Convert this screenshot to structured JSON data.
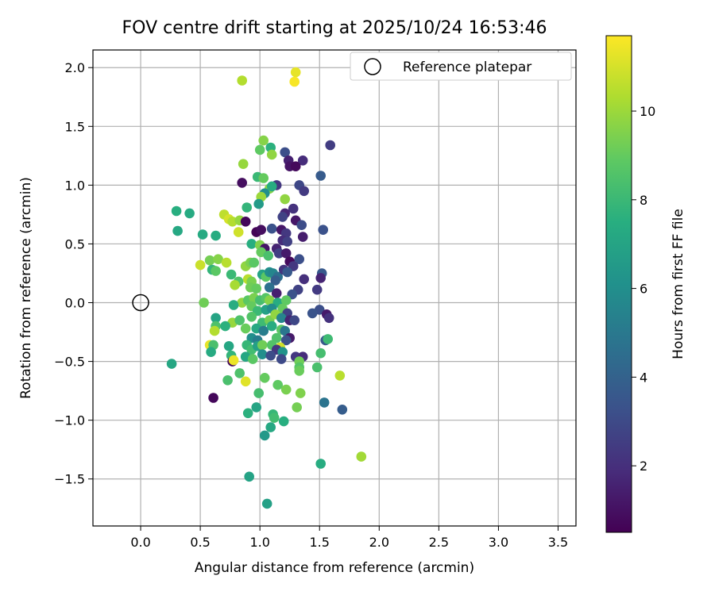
{
  "chart_data": {
    "type": "scatter",
    "title": "FOV centre drift starting at 2025/10/24 16:53:46",
    "xlabel": "Angular distance from reference (arcmin)",
    "ylabel": "Rotation from reference (arcmin)",
    "xlim": [
      -0.4,
      3.65
    ],
    "ylim": [
      -1.9,
      2.15
    ],
    "xticks": [
      "0.0",
      "0.5",
      "1.0",
      "1.5",
      "2.0",
      "2.5",
      "3.0",
      "3.5"
    ],
    "yticks": [
      "−1.5",
      "−1.0",
      "−0.5",
      "0.0",
      "0.5",
      "1.0",
      "1.5",
      "2.0"
    ],
    "grid": true,
    "legend": {
      "placement": "top-right",
      "entries": [
        "Reference platepar"
      ]
    },
    "reference": {
      "x": 0.0,
      "y": 0.0,
      "label": "Reference platepar"
    },
    "colorbar": {
      "label": "Hours from first FF file",
      "colormap": "viridis",
      "range": [
        0.5,
        11.7
      ],
      "ticks": [
        "2",
        "4",
        "6",
        "8",
        "10"
      ]
    },
    "points": [
      [
        0.85,
        1.89,
        10.4
      ],
      [
        1.3,
        1.96,
        11.3
      ],
      [
        1.29,
        1.88,
        11.6
      ],
      [
        1.59,
        1.34,
        2.5
      ],
      [
        1.03,
        1.38,
        9.6
      ],
      [
        1.0,
        1.3,
        8.9
      ],
      [
        1.09,
        1.32,
        7.6
      ],
      [
        1.1,
        1.26,
        9.8
      ],
      [
        1.21,
        1.28,
        3.2
      ],
      [
        1.24,
        1.21,
        1.5
      ],
      [
        1.36,
        1.21,
        1.9
      ],
      [
        1.25,
        1.16,
        1.1
      ],
      [
        1.3,
        1.16,
        0.8
      ],
      [
        0.86,
        1.18,
        9.9
      ],
      [
        1.51,
        1.08,
        3.7
      ],
      [
        0.98,
        1.07,
        8.0
      ],
      [
        1.03,
        1.06,
        9.0
      ],
      [
        0.85,
        1.02,
        0.9
      ],
      [
        1.08,
        0.97,
        9.6
      ],
      [
        1.14,
        1.0,
        2.3
      ],
      [
        1.33,
        1.0,
        2.9
      ],
      [
        1.37,
        0.95,
        2.4
      ],
      [
        1.1,
        0.99,
        7.4
      ],
      [
        1.04,
        0.93,
        6.0
      ],
      [
        1.01,
        0.9,
        10.0
      ],
      [
        1.21,
        0.88,
        9.8
      ],
      [
        0.99,
        0.84,
        6.6
      ],
      [
        1.28,
        0.8,
        2.1
      ],
      [
        0.89,
        0.81,
        7.8
      ],
      [
        0.3,
        0.78,
        7.5
      ],
      [
        0.41,
        0.76,
        7.3
      ],
      [
        0.7,
        0.75,
        10.6
      ],
      [
        0.74,
        0.71,
        11.0
      ],
      [
        0.77,
        0.69,
        10.4
      ],
      [
        0.83,
        0.7,
        9.9
      ],
      [
        1.21,
        0.76,
        1.7
      ],
      [
        1.19,
        0.73,
        2.7
      ],
      [
        0.88,
        0.69,
        0.7
      ],
      [
        1.3,
        0.7,
        1.2
      ],
      [
        1.35,
        0.66,
        3.1
      ],
      [
        1.1,
        0.63,
        3.3
      ],
      [
        1.18,
        0.62,
        1.2
      ],
      [
        1.22,
        0.59,
        2.3
      ],
      [
        1.53,
        0.62,
        3.3
      ],
      [
        0.31,
        0.61,
        7.2
      ],
      [
        0.52,
        0.58,
        7.3
      ],
      [
        0.63,
        0.57,
        7.4
      ],
      [
        0.82,
        0.6,
        10.9
      ],
      [
        0.97,
        0.6,
        0.6
      ],
      [
        1.01,
        0.62,
        0.9
      ],
      [
        1.36,
        0.56,
        1.4
      ],
      [
        1.19,
        0.53,
        1.9
      ],
      [
        1.23,
        0.52,
        2.6
      ],
      [
        0.93,
        0.5,
        7.5
      ],
      [
        1.0,
        0.49,
        9.5
      ],
      [
        1.04,
        0.46,
        1.1
      ],
      [
        1.14,
        0.46,
        1.6
      ],
      [
        1.16,
        0.42,
        2.6
      ],
      [
        1.22,
        0.42,
        1.3
      ],
      [
        1.33,
        0.37,
        3.2
      ],
      [
        1.01,
        0.43,
        9.0
      ],
      [
        1.07,
        0.4,
        8.4
      ],
      [
        0.5,
        0.32,
        10.8
      ],
      [
        0.58,
        0.36,
        9.3
      ],
      [
        0.65,
        0.37,
        9.6
      ],
      [
        0.72,
        0.34,
        10.5
      ],
      [
        0.6,
        0.28,
        7.8
      ],
      [
        0.63,
        0.27,
        8.8
      ],
      [
        0.88,
        0.31,
        9.8
      ],
      [
        0.92,
        0.34,
        9.4
      ],
      [
        0.95,
        0.34,
        8.8
      ],
      [
        0.76,
        0.24,
        8.0
      ],
      [
        0.82,
        0.18,
        8.6
      ],
      [
        0.9,
        0.2,
        10.5
      ],
      [
        0.93,
        0.18,
        9.4
      ],
      [
        1.02,
        0.24,
        7.0
      ],
      [
        1.05,
        0.22,
        8.8
      ],
      [
        1.08,
        0.26,
        6.0
      ],
      [
        1.11,
        0.25,
        5.6
      ],
      [
        1.15,
        0.22,
        4.6
      ],
      [
        1.2,
        0.28,
        2.2
      ],
      [
        1.25,
        0.35,
        0.8
      ],
      [
        1.28,
        0.31,
        2.3
      ],
      [
        1.23,
        0.26,
        3.6
      ],
      [
        1.52,
        0.25,
        3.6
      ],
      [
        1.51,
        0.21,
        1.6
      ],
      [
        1.37,
        0.2,
        2.0
      ],
      [
        1.13,
        0.19,
        3.8
      ],
      [
        1.08,
        0.13,
        4.6
      ],
      [
        0.79,
        0.15,
        10.2
      ],
      [
        0.92,
        0.13,
        9.2
      ],
      [
        0.97,
        0.12,
        9.0
      ],
      [
        1.32,
        0.11,
        2.7
      ],
      [
        1.48,
        0.11,
        2.4
      ],
      [
        1.27,
        0.07,
        3.3
      ],
      [
        1.14,
        0.08,
        1.5
      ],
      [
        0.85,
        0.0,
        9.8
      ],
      [
        0.9,
        0.02,
        8.8
      ],
      [
        0.95,
        0.04,
        9.4
      ],
      [
        1.0,
        0.02,
        8.3
      ],
      [
        1.05,
        0.04,
        8.7
      ],
      [
        1.08,
        0.02,
        9.6
      ],
      [
        1.15,
        0.0,
        7.4
      ],
      [
        1.22,
        0.02,
        8.9
      ],
      [
        0.53,
        0.0,
        9.2
      ],
      [
        0.78,
        -0.02,
        7.4
      ],
      [
        0.93,
        -0.03,
        9.0
      ],
      [
        0.98,
        -0.07,
        8.0
      ],
      [
        1.05,
        -0.06,
        6.8
      ],
      [
        1.1,
        -0.05,
        5.9
      ],
      [
        1.19,
        -0.05,
        9.0
      ],
      [
        1.23,
        -0.09,
        2.7
      ],
      [
        1.5,
        -0.06,
        3.2
      ],
      [
        1.44,
        -0.09,
        3.4
      ],
      [
        1.56,
        -0.1,
        1.3
      ],
      [
        1.58,
        -0.13,
        2.1
      ],
      [
        0.63,
        -0.13,
        7.0
      ],
      [
        0.77,
        -0.17,
        9.9
      ],
      [
        0.83,
        -0.15,
        8.5
      ],
      [
        0.93,
        -0.12,
        8.6
      ],
      [
        1.02,
        -0.17,
        8.1
      ],
      [
        1.08,
        -0.15,
        9.3
      ],
      [
        1.13,
        -0.1,
        9.8
      ],
      [
        1.18,
        -0.13,
        5.5
      ],
      [
        1.25,
        -0.15,
        1.6
      ],
      [
        1.29,
        -0.15,
        2.9
      ],
      [
        0.63,
        -0.2,
        8.5
      ],
      [
        0.71,
        -0.2,
        7.6
      ],
      [
        0.62,
        -0.24,
        10.4
      ],
      [
        0.88,
        -0.22,
        9.1
      ],
      [
        0.97,
        -0.22,
        7.2
      ],
      [
        1.03,
        -0.24,
        5.2
      ],
      [
        1.1,
        -0.2,
        7.4
      ],
      [
        1.18,
        -0.23,
        8.8
      ],
      [
        1.21,
        -0.24,
        4.9
      ],
      [
        1.25,
        -0.3,
        1.3
      ],
      [
        0.93,
        -0.3,
        6.0
      ],
      [
        0.98,
        -0.32,
        5.2
      ],
      [
        1.14,
        -0.3,
        8.5
      ],
      [
        1.22,
        -0.32,
        3.3
      ],
      [
        1.55,
        -0.32,
        3.6
      ],
      [
        1.57,
        -0.31,
        8.1
      ],
      [
        0.58,
        -0.36,
        11.3
      ],
      [
        0.61,
        -0.36,
        8.4
      ],
      [
        0.74,
        -0.37,
        7.1
      ],
      [
        0.89,
        -0.36,
        7.9
      ],
      [
        0.93,
        -0.4,
        8.2
      ],
      [
        0.98,
        -0.37,
        6.8
      ],
      [
        1.02,
        -0.36,
        9.2
      ],
      [
        1.1,
        -0.36,
        8.6
      ],
      [
        1.17,
        -0.38,
        10.9
      ],
      [
        1.14,
        -0.4,
        2.3
      ],
      [
        0.59,
        -0.42,
        7.3
      ],
      [
        0.76,
        -0.45,
        7.8
      ],
      [
        0.88,
        -0.46,
        7.1
      ],
      [
        0.94,
        -0.48,
        8.8
      ],
      [
        1.02,
        -0.44,
        6.0
      ],
      [
        1.09,
        -0.45,
        3.1
      ],
      [
        1.19,
        -0.42,
        6.2
      ],
      [
        1.3,
        -0.46,
        2.3
      ],
      [
        1.36,
        -0.46,
        1.9
      ],
      [
        1.51,
        -0.43,
        8.3
      ],
      [
        0.26,
        -0.52,
        7.1
      ],
      [
        0.77,
        -0.5,
        0.7
      ],
      [
        0.78,
        -0.49,
        11.4
      ],
      [
        1.18,
        -0.48,
        3.0
      ],
      [
        1.33,
        -0.5,
        9.2
      ],
      [
        1.33,
        -0.55,
        8.7
      ],
      [
        1.48,
        -0.55,
        8.4
      ],
      [
        1.33,
        -0.58,
        9.1
      ],
      [
        0.83,
        -0.6,
        8.5
      ],
      [
        1.04,
        -0.64,
        9.0
      ],
      [
        0.73,
        -0.66,
        8.4
      ],
      [
        0.88,
        -0.67,
        11.2
      ],
      [
        1.67,
        -0.62,
        10.5
      ],
      [
        1.15,
        -0.7,
        8.9
      ],
      [
        0.99,
        -0.77,
        8.3
      ],
      [
        1.22,
        -0.74,
        9.4
      ],
      [
        1.34,
        -0.77,
        9.5
      ],
      [
        0.61,
        -0.81,
        0.7
      ],
      [
        1.54,
        -0.85,
        4.8
      ],
      [
        1.69,
        -0.91,
        3.8
      ],
      [
        0.9,
        -0.94,
        7.6
      ],
      [
        0.97,
        -0.89,
        7.0
      ],
      [
        1.11,
        -0.95,
        7.9
      ],
      [
        1.12,
        -0.98,
        8.2
      ],
      [
        1.31,
        -0.89,
        9.3
      ],
      [
        1.2,
        -1.01,
        7.5
      ],
      [
        1.09,
        -1.06,
        7.2
      ],
      [
        1.04,
        -1.13,
        6.5
      ],
      [
        1.51,
        -1.37,
        7.4
      ],
      [
        1.85,
        -1.31,
        10.1
      ],
      [
        0.91,
        -1.48,
        6.9
      ],
      [
        1.06,
        -1.71,
        6.8
      ]
    ]
  }
}
